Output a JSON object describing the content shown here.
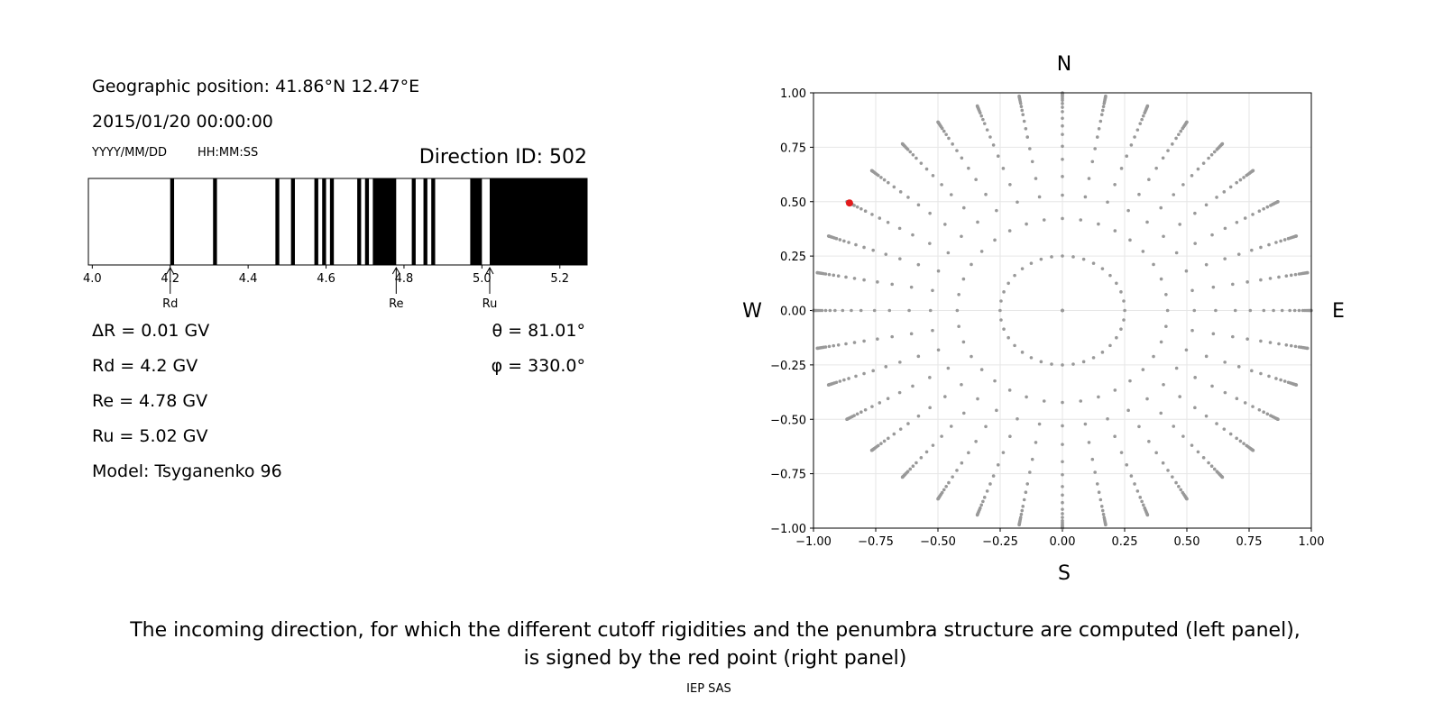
{
  "header": {
    "position": "Geographic position: 41.86°N 12.47°E",
    "datetime": "2015/01/20 00:00:00",
    "date_format": "YYYY/MM/DD",
    "time_format": "HH:MM:SS",
    "direction": "Direction ID: 502"
  },
  "results": {
    "left": [
      "ΔR = 0.01 GV",
      "Rd = 4.2 GV",
      "Re = 4.78 GV",
      "Ru = 5.02 GV",
      "Model: Tsyganenko 96"
    ],
    "right": [
      "θ = 81.01°",
      "φ = 330.0°"
    ]
  },
  "chart_data": [
    {
      "type": "penumbra",
      "xlim": [
        3.99,
        5.27
      ],
      "xticks": [
        {
          "value": 4,
          "label": "4.0"
        },
        4.2,
        4.4,
        4.6,
        4.8,
        {
          "value": 5,
          "label": "5.0"
        },
        5.2
      ],
      "forbidden": [
        [
          4.2,
          4.21
        ],
        [
          4.31,
          4.32
        ],
        [
          4.47,
          4.48
        ],
        [
          4.51,
          4.52
        ],
        [
          4.57,
          4.58
        ],
        [
          4.59,
          4.6
        ],
        [
          4.61,
          4.62
        ],
        [
          4.68,
          4.69
        ],
        [
          4.7,
          4.71
        ],
        [
          4.72,
          4.78
        ],
        [
          4.82,
          4.83
        ],
        [
          4.85,
          4.86
        ],
        [
          4.87,
          4.88
        ],
        [
          4.97,
          5.0
        ],
        [
          5.02,
          5.27
        ]
      ],
      "color": "#000000",
      "markers": [
        {
          "label": "Rd",
          "value": 4.2
        },
        {
          "label": "Re",
          "value": 4.78
        },
        {
          "label": "Ru",
          "value": 5.02
        }
      ]
    },
    {
      "type": "scatter",
      "xlim": [
        -1,
        1
      ],
      "ylim": [
        -1,
        1
      ],
      "xticks": [
        {
          "value": -1,
          "label": "−1.00"
        },
        {
          "value": -0.75,
          "label": "−0.75"
        },
        {
          "value": -0.5,
          "label": "−0.50"
        },
        {
          "value": -0.25,
          "label": "−0.25"
        },
        {
          "value": 0,
          "label": "0.00"
        },
        {
          "value": 0.25,
          "label": "0.25"
        },
        {
          "value": 0.5,
          "label": "0.50"
        },
        {
          "value": 0.75,
          "label": "0.75"
        },
        {
          "value": 1,
          "label": "1.00"
        }
      ],
      "yticks": [
        {
          "value": -1,
          "label": "−1.00"
        },
        {
          "value": -0.75,
          "label": "−0.75"
        },
        {
          "value": -0.5,
          "label": "−0.50"
        },
        {
          "value": -0.25,
          "label": "−0.25"
        },
        {
          "value": 0,
          "label": "0.00"
        },
        {
          "value": 0.25,
          "label": "0.25"
        },
        {
          "value": 0.5,
          "label": "0.50"
        },
        {
          "value": 0.75,
          "label": "0.75"
        },
        {
          "value": 1,
          "label": "1.00"
        }
      ],
      "grid": true,
      "compass": {
        "north": "N",
        "south": "S",
        "east": "E",
        "west": "W"
      },
      "zenith": [
        0,
        14.5,
        25,
        32,
        38,
        44,
        49,
        54,
        58,
        62,
        66,
        69,
        72,
        75,
        77,
        79,
        81,
        83,
        85,
        87,
        89
      ],
      "azimuth": [
        0,
        10,
        20,
        30,
        40,
        50,
        60,
        70,
        80,
        90,
        100,
        110,
        120,
        130,
        140,
        150,
        160,
        170,
        180,
        190,
        200,
        210,
        220,
        230,
        240,
        250,
        260,
        270,
        280,
        290,
        300,
        310,
        320,
        330,
        340,
        350
      ],
      "color": "#999999",
      "selected": {
        "zenith": 81.01,
        "azimuth": 330.0,
        "color": "#e31a1c"
      }
    }
  ],
  "caption": [
    "The incoming direction, for which the different cutoff rigidities and the penumbra structure are computed (left panel),",
    "is signed by the red point (right panel)"
  ],
  "footer": "IEP SAS"
}
